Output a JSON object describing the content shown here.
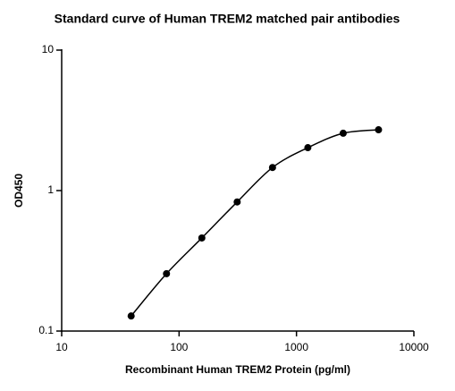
{
  "chart_data": {
    "type": "scatter",
    "title": "Standard curve of Human TREM2 matched pair antibodies",
    "x_label": "Recombinant Human TREM2 Protein (pg/ml)",
    "y_label": "OD450",
    "x": [
      39.06,
      78.13,
      156.25,
      312.5,
      625,
      1250,
      2500,
      5000
    ],
    "values": [
      0.128,
      0.256,
      0.46,
      0.83,
      1.46,
      2.02,
      2.56,
      2.71
    ],
    "color": "#000000",
    "x_log": true,
    "y_log": true,
    "xlim": [
      10,
      10000
    ],
    "xticks": [
      10,
      100,
      1000,
      10000
    ],
    "ylim": [
      0.1,
      10
    ],
    "yticks": [
      0.1,
      1,
      10
    ],
    "grid": false
  }
}
